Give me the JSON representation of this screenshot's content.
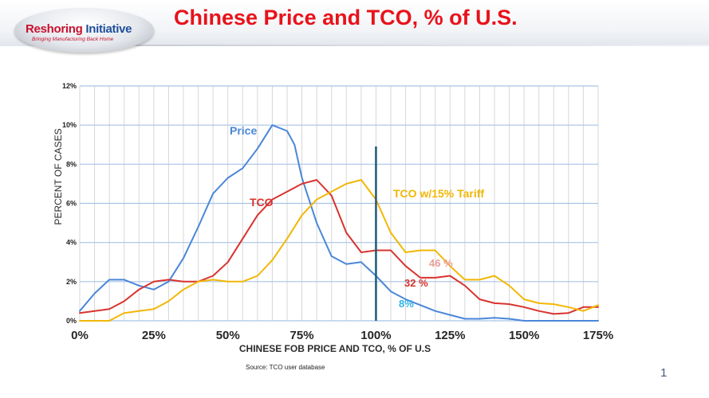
{
  "slide": {
    "title": "Chinese Price and TCO, % of U.S.",
    "page_number": "1",
    "source_note": "Source: TCO user database"
  },
  "logo": {
    "name_part1": "Reshoring",
    "name_part2": " Initiative",
    "tagline": "Bringing Manufacturing Back Home"
  },
  "colors": {
    "title": "#e8121b",
    "price": "#4a86d8",
    "tco": "#d8332e",
    "tariff": "#f2b705",
    "marker": "#1e5a7a",
    "grid_major": "#a8c4e6",
    "grid_minor": "#d7d7d7"
  },
  "chart_data": {
    "type": "line",
    "title": "",
    "xlabel": "CHINESE FOB PRICE AND TCO, % OF U.S",
    "ylabel": "PERCENT OF CASES",
    "x_ticks": [
      "0%",
      "25%",
      "50%",
      "75%",
      "100%",
      "125%",
      "150%",
      "175%"
    ],
    "y_ticks": [
      "0%",
      "2%",
      "4%",
      "6%",
      "8%",
      "10%",
      "12%"
    ],
    "xlim": [
      0,
      175
    ],
    "ylim": [
      0,
      12
    ],
    "vertical_marker_x": 100,
    "series": [
      {
        "name": "Price",
        "color": "#4a86d8",
        "x": [
          0,
          5,
          10,
          15,
          20,
          25,
          30,
          35,
          40,
          45,
          50,
          55,
          60,
          65,
          70,
          72.5,
          75,
          80,
          85,
          90,
          95,
          100,
          105,
          110,
          115,
          120,
          125,
          130,
          135,
          140,
          145,
          150,
          155,
          160,
          165,
          170,
          175
        ],
        "values": [
          0.5,
          1.4,
          2.1,
          2.1,
          1.8,
          1.6,
          2.0,
          3.2,
          4.8,
          6.5,
          7.3,
          7.8,
          8.8,
          10.0,
          9.7,
          9.0,
          7.3,
          5.0,
          3.3,
          2.9,
          3.0,
          2.3,
          1.5,
          1.1,
          0.8,
          0.5,
          0.3,
          0.1,
          0.1,
          0.15,
          0.1,
          0.0,
          0.0,
          0.0,
          0.0,
          0.0,
          0.0
        ]
      },
      {
        "name": "TCO",
        "color": "#d8332e",
        "x": [
          0,
          5,
          10,
          15,
          20,
          25,
          30,
          35,
          40,
          45,
          50,
          55,
          60,
          65,
          70,
          75,
          80,
          85,
          90,
          95,
          100,
          105,
          110,
          115,
          120,
          125,
          130,
          135,
          140,
          145,
          150,
          155,
          160,
          165,
          170,
          175
        ],
        "values": [
          0.4,
          0.5,
          0.6,
          1.0,
          1.6,
          2.0,
          2.1,
          2.0,
          2.0,
          2.3,
          3.0,
          4.2,
          5.4,
          6.2,
          6.6,
          7.0,
          7.2,
          6.4,
          4.5,
          3.5,
          3.6,
          3.6,
          2.8,
          2.2,
          2.2,
          2.3,
          1.8,
          1.1,
          0.9,
          0.85,
          0.7,
          0.5,
          0.35,
          0.4,
          0.7,
          0.7
        ]
      },
      {
        "name": "TCO w/15% Tariff",
        "color": "#f2b705",
        "x": [
          0,
          5,
          10,
          15,
          20,
          25,
          30,
          35,
          40,
          45,
          50,
          55,
          60,
          65,
          70,
          75,
          80,
          85,
          90,
          95,
          100,
          105,
          110,
          115,
          120,
          125,
          130,
          135,
          140,
          145,
          150,
          155,
          160,
          165,
          170,
          175
        ],
        "values": [
          0.0,
          0.0,
          0.0,
          0.4,
          0.5,
          0.6,
          1.0,
          1.6,
          2.0,
          2.1,
          2.0,
          2.0,
          2.3,
          3.1,
          4.2,
          5.4,
          6.2,
          6.6,
          7.0,
          7.2,
          6.2,
          4.5,
          3.5,
          3.6,
          3.6,
          2.8,
          2.1,
          2.1,
          2.3,
          1.8,
          1.1,
          0.9,
          0.85,
          0.7,
          0.5,
          0.8
        ]
      }
    ],
    "annotations": [
      {
        "text": "Price",
        "series": 0
      },
      {
        "text": "TCO",
        "series": 1
      },
      {
        "text": "TCO  w/15% Tariff",
        "series": 2
      },
      {
        "text": "46 %",
        "series": 2
      },
      {
        "text": "32 %",
        "series": 1
      },
      {
        "text": "8%",
        "series": 0
      }
    ]
  }
}
